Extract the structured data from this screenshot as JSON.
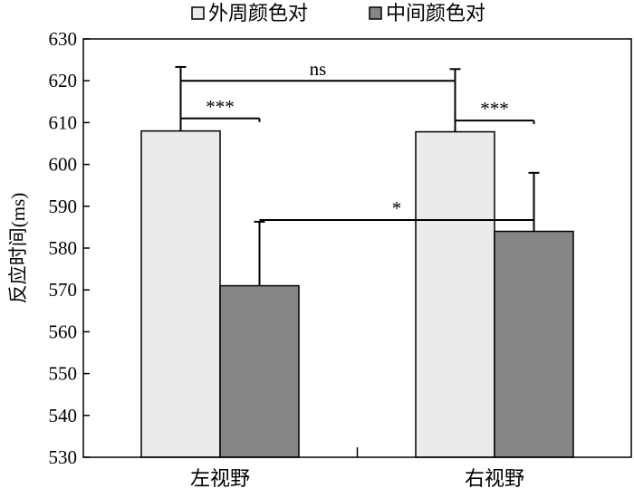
{
  "chart_data": {
    "type": "bar",
    "title": "",
    "xlabel": "",
    "ylabel": "反应时间(ms)",
    "ylim": [
      530,
      630
    ],
    "yticks": [
      530,
      540,
      550,
      560,
      570,
      580,
      590,
      600,
      610,
      620,
      630
    ],
    "categories": [
      "左视野",
      "右视野"
    ],
    "series": [
      {
        "name": "外周颜色对",
        "color": "#ebebeb",
        "values": [
          608,
          607.8
        ],
        "errors": [
          15.3,
          15
        ]
      },
      {
        "name": "中间颜色对",
        "color": "#868686",
        "values": [
          571,
          584
        ],
        "errors": [
          15.3,
          14
        ]
      }
    ],
    "legend": {
      "position": "top-center"
    },
    "grid": false,
    "annotations": [
      {
        "label": "ns",
        "between": "外周颜色对 左视野 — 外周颜色对 右视野"
      },
      {
        "label": "***",
        "between": "左视野: 外周颜色对 — 中间颜色对"
      },
      {
        "label": "***",
        "between": "右视野: 外周颜色对 — 中间颜色对"
      },
      {
        "label": "*",
        "between": "中间颜色对 左视野 — 中间颜色对 右视野"
      }
    ]
  }
}
